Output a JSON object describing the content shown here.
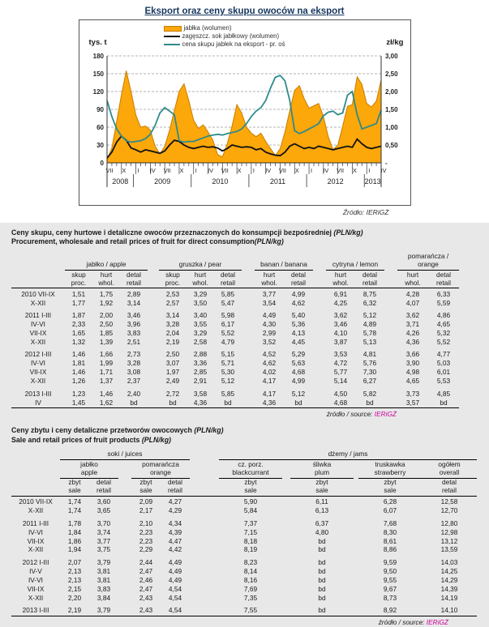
{
  "chart": {
    "title": "Eksport oraz ceny skupu owoców na eksport",
    "left_axis_label": "tys. t",
    "right_axis_label": "zł/kg",
    "source": "Źródło: IERiGŻ",
    "legend": [
      {
        "label": "jabłka (wolumen)",
        "type": "area",
        "color": "#FCA70A"
      },
      {
        "label": "zagęszcz. sok jabłkowy (wolumen)",
        "type": "line",
        "color": "#111111"
      },
      {
        "label": "cena skupu jabłek na eksport - pr. oś",
        "type": "line",
        "color": "#2E8B8A"
      }
    ]
  },
  "chart_data": {
    "type": "line",
    "title": "Eksport oraz ceny skupu owoców na eksport",
    "x_start": "2008-07",
    "x_end": "2013-04",
    "month_labels": [
      "VII",
      "X",
      "I",
      "IV",
      "VII",
      "X",
      "I",
      "IV",
      "VII",
      "X",
      "I",
      "IV",
      "VII",
      "X",
      "I",
      "IV",
      "VII",
      "X",
      "I",
      "IV"
    ],
    "years": [
      "2008",
      "2009",
      "2010",
      "2011",
      "2012",
      "2013"
    ],
    "year_center_index": [
      2.75,
      11.5,
      23.5,
      35.5,
      47.5,
      55.25
    ],
    "year_sep_index": [
      5.5,
      17.5,
      29.5,
      41.5,
      53.5
    ],
    "grid": "dashed-horizontal",
    "legend_position": "top-center",
    "left_axis": {
      "label": "tys. t",
      "ticks": [
        0,
        30,
        60,
        90,
        120,
        150,
        180
      ],
      "max": 180
    },
    "right_axis": {
      "label": "zł/kg",
      "ticks": [
        0,
        0.5,
        1,
        1.5,
        2,
        2.5,
        3
      ],
      "tick_labels": [
        "-",
        "0,50",
        "1,00",
        "1,50",
        "2,00",
        "2,50",
        "3,00"
      ],
      "max": 3
    },
    "series": [
      {
        "name": "jabłka (wolumen)",
        "axis": "left",
        "type": "area",
        "color": "#FCA70A",
        "border": "#C87E00",
        "values": [
          5,
          25,
          70,
          115,
          155,
          120,
          80,
          60,
          62,
          55,
          28,
          15,
          28,
          55,
          88,
          120,
          133,
          105,
          72,
          58,
          64,
          52,
          38,
          14,
          10,
          32,
          62,
          98,
          84,
          60,
          50,
          44,
          50,
          36,
          24,
          12,
          24,
          52,
          88,
          122,
          130,
          108,
          92,
          96,
          100,
          78,
          44,
          22,
          30,
          62,
          95,
          98,
          145,
          132,
          100,
          94,
          104,
          140
        ]
      },
      {
        "name": "zagęszcz. sok jabłkowy (wolumen)",
        "axis": "left",
        "type": "line",
        "color": "#111111",
        "values": [
          8,
          18,
          35,
          45,
          38,
          25,
          22,
          18,
          22,
          20,
          18,
          16,
          20,
          30,
          38,
          36,
          30,
          26,
          24,
          26,
          28,
          26,
          27,
          25,
          20,
          24,
          30,
          28,
          26,
          27,
          26,
          22,
          24,
          18,
          15,
          13,
          12,
          18,
          28,
          32,
          28,
          24,
          26,
          24,
          28,
          26,
          24,
          22,
          24,
          26,
          28,
          26,
          40,
          32,
          26,
          24,
          26,
          28
        ]
      },
      {
        "name": "cena skupu jabłek na eksport - pr. oś",
        "axis": "right",
        "type": "line",
        "color": "#2E8B8A",
        "values": [
          1.75,
          1.3,
          0.95,
          0.75,
          0.62,
          0.58,
          0.6,
          0.62,
          0.68,
          0.8,
          1.05,
          1.4,
          1.55,
          1.45,
          1.35,
          0.62,
          0.58,
          0.6,
          0.6,
          0.65,
          0.7,
          0.75,
          0.78,
          0.8,
          0.78,
          0.82,
          0.85,
          0.88,
          0.95,
          1.1,
          1.3,
          1.45,
          1.55,
          1.75,
          2.1,
          2.4,
          2.45,
          2.3,
          1.75,
          0.9,
          0.82,
          0.88,
          0.95,
          1.02,
          1.1,
          1.32,
          1.42,
          1.45,
          1.35,
          1.4,
          1.9,
          2.0,
          1.35,
          0.95,
          1.0,
          1.05,
          1.1,
          1.48
        ]
      }
    ]
  },
  "table1": {
    "title_pl": "Ceny skupu, ceny hurtowe i detaliczne owoców przeznaczonych do konsumpcji bezpośredniej ",
    "title_pl_unit": "(PLN/kg)",
    "title_en": "Procurement, wholesale and retail prices of fruit for direct consumption",
    "title_en_unit": "(PLN/kg)",
    "groups": [
      {
        "label": "jabłko / apple",
        "cols": [
          "skup\nproc.",
          "hurt\nwhol.",
          "detal\nretail"
        ]
      },
      {
        "label": "gruszka / pear",
        "cols": [
          "skup\nproc.",
          "hurt\nwhol.",
          "detal\nretail"
        ]
      },
      {
        "label": "banan / banana",
        "cols": [
          "hurt\nwhol.",
          "detal\nretail"
        ]
      },
      {
        "label": "cytryna / lemon",
        "cols": [
          "hurt\nwhol.",
          "detal\nretail"
        ]
      },
      {
        "label": "pomarańcza / orange",
        "cols": [
          "hurt\nwhol.",
          "detal\nretail"
        ]
      }
    ],
    "rows": [
      {
        "label": "2010 VII-IX",
        "gap": false,
        "values": [
          "1,51",
          "1,75",
          "2,89",
          "2,53",
          "3,29",
          "5,85",
          "3,77",
          "4,99",
          "6,91",
          "8,75",
          "4,28",
          "6,33"
        ]
      },
      {
        "label": "X-XII",
        "gap": false,
        "values": [
          "1,77",
          "1,92",
          "3,14",
          "2,57",
          "3,50",
          "5,47",
          "3,54",
          "4,62",
          "4,25",
          "6,32",
          "4,07",
          "5,59"
        ]
      },
      {
        "label": "2011 I-III",
        "gap": true,
        "values": [
          "1,87",
          "2,00",
          "3,46",
          "3,14",
          "3,40",
          "5,98",
          "4,49",
          "5,40",
          "3,62",
          "5,12",
          "3,62",
          "4,86"
        ]
      },
      {
        "label": "IV-VI",
        "gap": false,
        "values": [
          "2,33",
          "2,50",
          "3,96",
          "3,28",
          "3,55",
          "6,17",
          "4,30",
          "5,36",
          "3,46",
          "4,89",
          "3,71",
          "4,65"
        ]
      },
      {
        "label": "VII-IX",
        "gap": false,
        "values": [
          "1,65",
          "1,85",
          "3,83",
          "2,04",
          "3,29",
          "5,52",
          "2,99",
          "4,13",
          "4,10",
          "5,78",
          "4,26",
          "5,32"
        ]
      },
      {
        "label": "X-XII",
        "gap": false,
        "values": [
          "1,32",
          "1,39",
          "2,51",
          "2,19",
          "2,58",
          "4,79",
          "3,52",
          "4,45",
          "3,87",
          "5,13",
          "4,36",
          "5,52"
        ]
      },
      {
        "label": "2012 I-III",
        "gap": true,
        "values": [
          "1,46",
          "1,66",
          "2,73",
          "2,50",
          "2,88",
          "5,15",
          "4,52",
          "5,29",
          "3,53",
          "4,81",
          "3,66",
          "4,77"
        ]
      },
      {
        "label": "IV-VI",
        "gap": false,
        "values": [
          "1,81",
          "1,99",
          "3,28",
          "3,07",
          "3,36",
          "5,71",
          "4,62",
          "5,63",
          "4,72",
          "5,76",
          "3,90",
          "5,03"
        ]
      },
      {
        "label": "VII-IX",
        "gap": false,
        "values": [
          "1,46",
          "1,71",
          "3,08",
          "1,97",
          "2,85",
          "5,30",
          "4,02",
          "4,68",
          "5,77",
          "7,30",
          "4,98",
          "6,01"
        ]
      },
      {
        "label": "X-XII",
        "gap": false,
        "values": [
          "1,26",
          "1,37",
          "2,37",
          "2,49",
          "2,91",
          "5,12",
          "4,17",
          "4,99",
          "5,14",
          "6,27",
          "4,65",
          "5,53"
        ]
      },
      {
        "label": "2013 I-III",
        "gap": true,
        "values": [
          "1,23",
          "1,46",
          "2,40",
          "2,72",
          "3,58",
          "5,85",
          "4,17",
          "5,12",
          "4,50",
          "5,82",
          "3,73",
          "4,85"
        ]
      },
      {
        "label": "IV",
        "gap": false,
        "values": [
          "1,45",
          "1,62",
          "bd",
          "bd",
          "4,36",
          "bd",
          "4,36",
          "bd",
          "4,68",
          "bd",
          "3,57",
          "bd"
        ]
      }
    ],
    "source_prefix": "źródło / source: ",
    "source_name": "IERiGŻ"
  },
  "table2": {
    "title_pl": "Ceny zbytu i ceny detaliczne przetworów owocowych ",
    "title_pl_unit": "(PLN/kg)",
    "title_en": "Sale and retail prices of fruit products ",
    "title_en_unit": "(PLN/kg)",
    "group1_label": "soki / juices",
    "group2_label": "dżemy / jams",
    "sub_groups": [
      "jabłko\napple",
      "pomarańcza\norange",
      "cz. porz.\nblackcurrant",
      "śliwka\nplum",
      "truskawka\nstrawberry",
      "ogółem\noverall"
    ],
    "col_heads": [
      "zbyt\nsale",
      "detal\nretail",
      "zbyt\nsale",
      "detal\nretail",
      "zbyt\nsale",
      "zbyt\nsale",
      "zbyt\nsale",
      "detal\nretail"
    ],
    "rows": [
      {
        "label": "2010 VII-IX",
        "gap": false,
        "values": [
          "1,74",
          "3,60",
          "2,09",
          "4,27",
          "5,90",
          "6,11",
          "6,28",
          "12,58"
        ]
      },
      {
        "label": "X-XII",
        "gap": false,
        "values": [
          "1,74",
          "3,65",
          "2,17",
          "4,29",
          "5,84",
          "6,13",
          "6,07",
          "12,70"
        ]
      },
      {
        "label": "2011 I-III",
        "gap": true,
        "values": [
          "1,78",
          "3,70",
          "2,10",
          "4,34",
          "7,37",
          "6,37",
          "7,68",
          "12,80"
        ]
      },
      {
        "label": "IV-VI",
        "gap": false,
        "values": [
          "1,84",
          "3,74",
          "2,23",
          "4,39",
          "7,15",
          "4,80",
          "8,30",
          "12,98"
        ]
      },
      {
        "label": "VII-IX",
        "gap": false,
        "values": [
          "1,86",
          "3,77",
          "2,23",
          "4,47",
          "8,18",
          "bd",
          "8,61",
          "13,12"
        ]
      },
      {
        "label": "X-XII",
        "gap": false,
        "values": [
          "1,94",
          "3,75",
          "2,29",
          "4,42",
          "8,19",
          "bd",
          "8,86",
          "13,59"
        ]
      },
      {
        "label": "2012 I-III",
        "gap": true,
        "values": [
          "2,07",
          "3,79",
          "2,44",
          "4,49",
          "8,23",
          "bd",
          "9,59",
          "14,03"
        ]
      },
      {
        "label": "IV-V",
        "gap": false,
        "values": [
          "2,13",
          "3,81",
          "2,47",
          "4,49",
          "8,14",
          "bd",
          "9,50",
          "14,25"
        ]
      },
      {
        "label": "IV-VI",
        "gap": false,
        "values": [
          "2,13",
          "3,81",
          "2,46",
          "4,49",
          "8,16",
          "bd",
          "9,55",
          "14,29"
        ]
      },
      {
        "label": "VII-IX",
        "gap": false,
        "values": [
          "2,15",
          "3,83",
          "2,47",
          "4,54",
          "7,69",
          "bd",
          "9,67",
          "14,39"
        ]
      },
      {
        "label": "X-XII",
        "gap": false,
        "values": [
          "2,20",
          "3,84",
          "2,43",
          "4,54",
          "7,35",
          "bd",
          "8,73",
          "14,19"
        ]
      },
      {
        "label": "2013 I-III",
        "gap": true,
        "values": [
          "2,19",
          "3,79",
          "2,43",
          "4,54",
          "7,55",
          "bd",
          "8,92",
          "14,10"
        ]
      }
    ],
    "source_prefix": "źródło / source: ",
    "source_name": "IERiGŻ"
  }
}
